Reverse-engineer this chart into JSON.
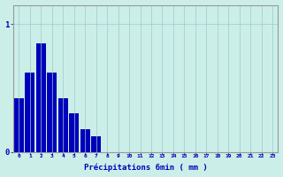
{
  "values": [
    0.42,
    0.62,
    0.85,
    0.62,
    0.42,
    0.3,
    0.18,
    0.12,
    0.0,
    0.0,
    0.0,
    0.0,
    0.0,
    0.0,
    0.0,
    0.0,
    0.0,
    0.0,
    0.0,
    0.0,
    0.0,
    0.0,
    0.0,
    0.0
  ],
  "bar_color": "#0000bb",
  "background_color": "#cceee8",
  "grid_color": "#99cccc",
  "xlabel": "Précipitations 6min ( mm )",
  "ytick_labels": [
    "0",
    "1"
  ],
  "ytick_vals": [
    0,
    1
  ],
  "ylim": [
    0,
    1.15
  ],
  "xlim": [
    -0.5,
    23.5
  ],
  "tick_color": "#0000bb",
  "axis_color": "#999999",
  "figsize": [
    3.2,
    2.0
  ],
  "dpi": 100
}
